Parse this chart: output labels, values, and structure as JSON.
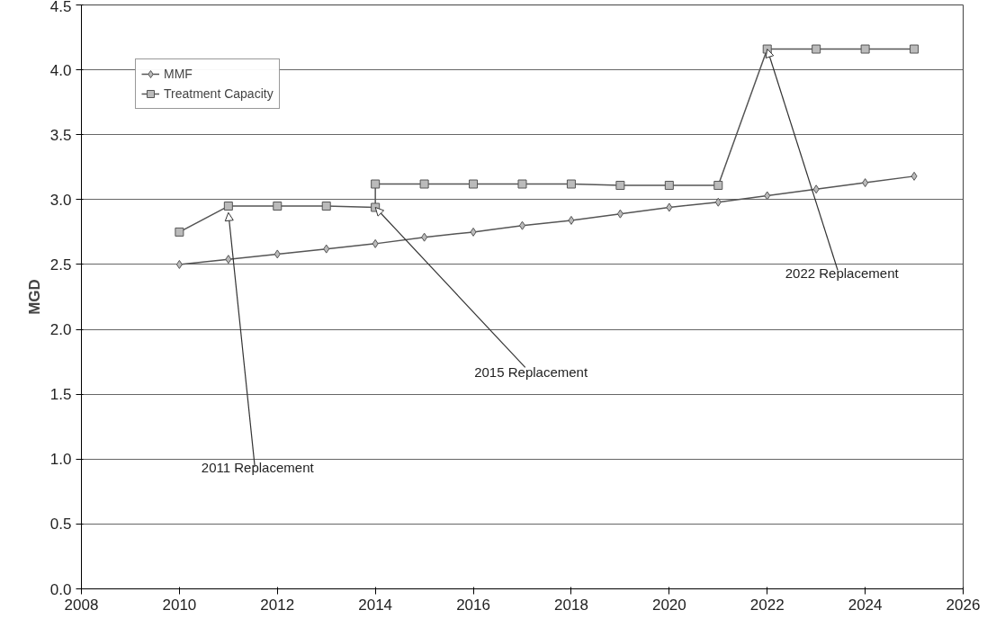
{
  "chart_data": {
    "type": "line",
    "ylabel": "MGD",
    "xlim": [
      2008,
      2026
    ],
    "xticks": [
      2008,
      2010,
      2012,
      2014,
      2016,
      2018,
      2020,
      2022,
      2024,
      2026
    ],
    "ylim": [
      0,
      4.5
    ],
    "yticks": [
      {
        "value": 0,
        "label": "0.0"
      },
      {
        "value": 0.5,
        "label": "0.5"
      },
      {
        "value": 1,
        "label": "1.0"
      },
      {
        "value": 1.5,
        "label": "1.5"
      },
      {
        "value": 2,
        "label": "2.0"
      },
      {
        "value": 2.5,
        "label": "2.5"
      },
      {
        "value": 3,
        "label": "3.0"
      },
      {
        "value": 3.5,
        "label": "3.5"
      },
      {
        "value": 4,
        "label": "4.0"
      },
      {
        "value": 4.5,
        "label": "4.5"
      }
    ],
    "grid": "y",
    "legend": "top left",
    "series": [
      {
        "name": "MMF",
        "color": "#555555",
        "marker": "diamond",
        "x": [
          2010,
          2011,
          2012,
          2013,
          2014,
          2015,
          2016,
          2017,
          2018,
          2019,
          2020,
          2021,
          2022,
          2023,
          2024,
          2025
        ],
        "values": [
          2.5,
          2.54,
          2.58,
          2.62,
          2.66,
          2.71,
          2.75,
          2.8,
          2.84,
          2.89,
          2.94,
          2.98,
          3.03,
          3.08,
          3.13,
          3.18
        ]
      },
      {
        "name": "Treatment Capacity",
        "color": "#555555",
        "marker": "square",
        "x": [
          2010,
          2011,
          2012,
          2013,
          2014,
          2014,
          2015,
          2016,
          2017,
          2018,
          2019,
          2020,
          2021,
          2022,
          2023,
          2024,
          2025
        ],
        "values": [
          2.75,
          2.95,
          2.95,
          2.95,
          2.94,
          3.12,
          3.12,
          3.12,
          3.12,
          3.12,
          3.11,
          3.11,
          3.11,
          4.16,
          4.16,
          4.16,
          4.16
        ]
      }
    ],
    "annotations": [
      {
        "text": "2011 Replacement",
        "x": 2011,
        "y": 2.9
      },
      {
        "text": "2015 Replacement",
        "x": 2014,
        "y": 2.94
      },
      {
        "text": "2022 Replacement",
        "x": 2022,
        "y": 4.16
      }
    ]
  }
}
